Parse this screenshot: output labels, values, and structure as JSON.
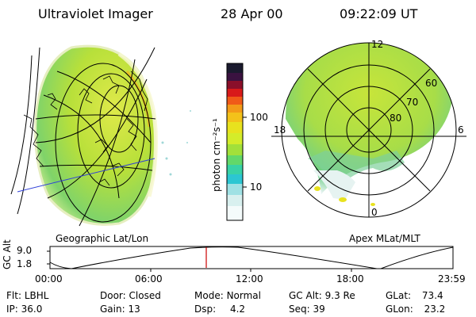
{
  "header": {
    "title": "Ultraviolet Imager",
    "date": "28 Apr 00",
    "time": "09:22:09 UT"
  },
  "colorbar": {
    "label": "photon cm⁻²s⁻¹",
    "ticks": [
      "100",
      "10"
    ]
  },
  "panels": {
    "left_caption": "Geographic Lat/Lon",
    "right_caption": "Apex MLat/MLT",
    "polar_labels": {
      "top": "12",
      "bottom": "0",
      "left": "18",
      "right": "6",
      "lat_60": "60",
      "lat_70": "70",
      "lat_80": "80"
    }
  },
  "timeline": {
    "y_label": "GC Alt",
    "y_ticks": [
      "9.0",
      "1.8"
    ],
    "x_ticks": [
      "00:00",
      "06:00",
      "12:00",
      "18:00",
      "23:59"
    ],
    "marker_color": "#cc0000"
  },
  "status": {
    "row1": [
      {
        "label": "Flt:",
        "value": "LBHL"
      },
      {
        "label": "Door:",
        "value": "Closed"
      },
      {
        "label": "Mode:",
        "value": "Normal"
      },
      {
        "label": "GC Alt:",
        "value": "9.3 Re"
      },
      {
        "label": "GLat:",
        "value": "73.4"
      }
    ],
    "row2": [
      {
        "label": "IP:",
        "value": "36.0"
      },
      {
        "label": "Gain:",
        "value": "13"
      },
      {
        "label": "Dsp:",
        "value": "4.2"
      },
      {
        "label": "Seq:",
        "value": "39"
      },
      {
        "label": "GLon:",
        "value": "23.2"
      }
    ]
  }
}
